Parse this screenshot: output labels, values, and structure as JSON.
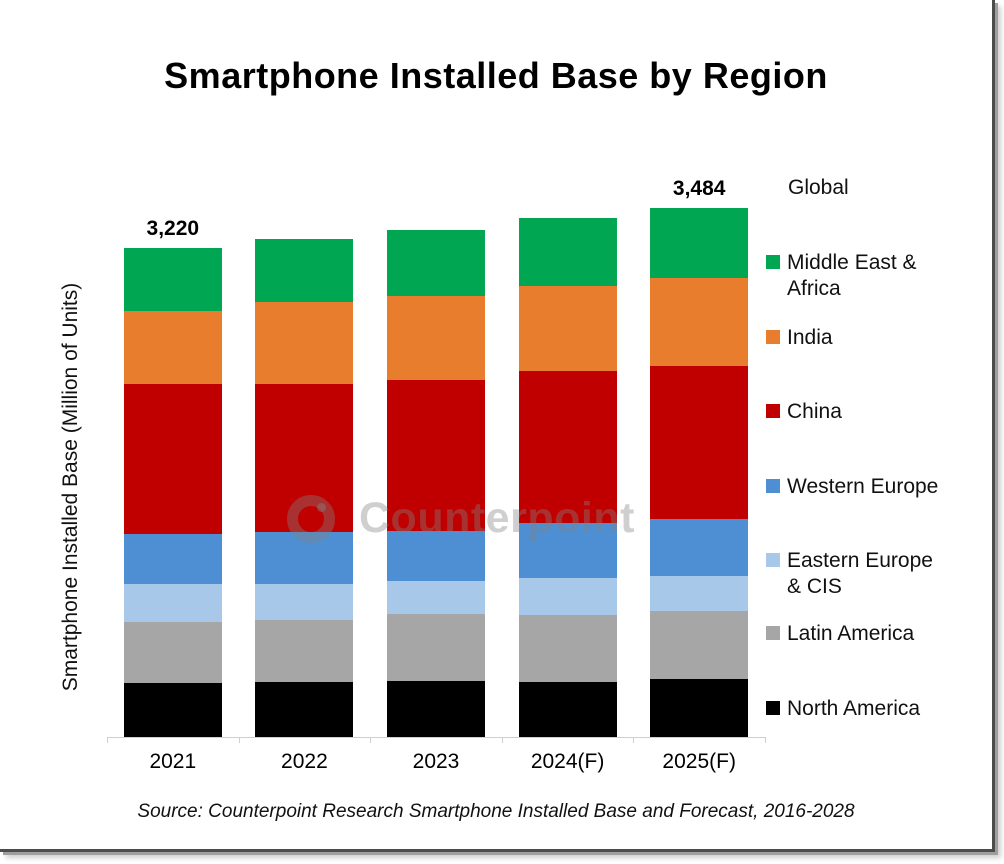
{
  "title": "Smartphone Installed Base by Region",
  "y_axis_label": "Smartphone Installed Base (Million of Units)",
  "watermark_text": "Counterpoint",
  "source": "Source: Counterpoint Research Smartphone Installed Base and Forecast, 2016-2028",
  "legend": {
    "header": "Global",
    "items": [
      {
        "label": "Middle East & Africa",
        "color": "#00A651"
      },
      {
        "label": "India",
        "color": "#E87E2D"
      },
      {
        "label": "China",
        "color": "#C00000"
      },
      {
        "label": "Western Europe",
        "color": "#4E8FD3"
      },
      {
        "label": "Eastern Europe & CIS",
        "color": "#A8C8EA"
      },
      {
        "label": "Latin America",
        "color": "#A6A6A6"
      },
      {
        "label": "North America",
        "color": "#000000"
      }
    ]
  },
  "chart_data": {
    "type": "bar",
    "stacked": true,
    "title": "Smartphone Installed Base by Region",
    "ylabel": "Smartphone Installed Base (Million of Units)",
    "unit": "Million of Units",
    "grid": false,
    "legend_position": "right",
    "ylim": [
      0,
      3600
    ],
    "categories": [
      "2021",
      "2022",
      "2023",
      "2024(F)",
      "2025(F)"
    ],
    "series": [
      {
        "name": "North America",
        "color": "#000000",
        "values": [
          356,
          362,
          369,
          362,
          382
        ]
      },
      {
        "name": "Latin America",
        "color": "#A6A6A6",
        "values": [
          402,
          408,
          441,
          441,
          448
        ]
      },
      {
        "name": "Eastern Europe & CIS",
        "color": "#A8C8EA",
        "values": [
          250,
          237,
          217,
          244,
          231
        ]
      },
      {
        "name": "Western Europe",
        "color": "#4E8FD3",
        "values": [
          329,
          342,
          329,
          362,
          375
        ]
      },
      {
        "name": "China",
        "color": "#C00000",
        "values": [
          987,
          975,
          994,
          1001,
          1007
        ]
      },
      {
        "name": "India",
        "color": "#E87E2D",
        "values": [
          481,
          540,
          553,
          560,
          580
        ]
      },
      {
        "name": "Middle East & Africa",
        "color": "#00A651",
        "values": [
          415,
          415,
          435,
          448,
          461
        ]
      }
    ],
    "total_labels": [
      "3,220",
      "",
      "",
      "",
      "3,484"
    ]
  }
}
